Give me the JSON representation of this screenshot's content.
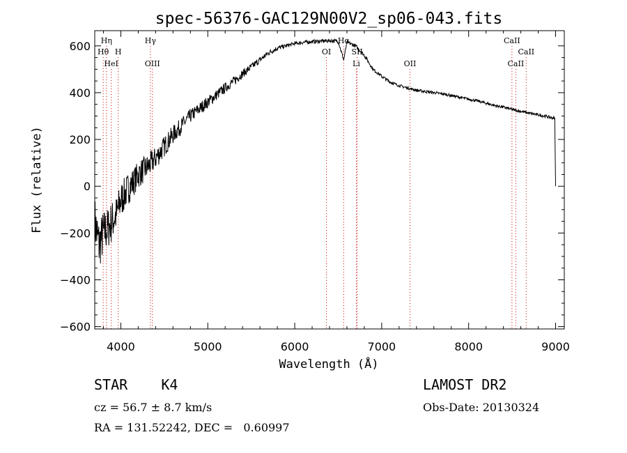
{
  "chart_data": {
    "type": "line",
    "title": "spec-56376-GAC129N00V2_sp06-043.fits",
    "xlabel": "Wavelength (Å)",
    "ylabel": "Flux (relative)",
    "xlim": [
      3700,
      9100
    ],
    "ylim": [
      -610,
      665
    ],
    "x_ticks": [
      4000,
      5000,
      6000,
      7000,
      8000,
      9000
    ],
    "y_ticks": [
      -600,
      -400,
      -200,
      0,
      200,
      400,
      600
    ],
    "grid": false,
    "series": [
      {
        "x": [
          3700,
          3750,
          3800,
          3850,
          3900,
          3950,
          4000,
          4050,
          4100,
          4150,
          4200,
          4300,
          4400,
          4500,
          4600,
          4700,
          4800,
          4900,
          5000,
          5100,
          5200,
          5300,
          5400,
          5500,
          5600,
          5700,
          5800,
          5900,
          6000,
          6100,
          6200,
          6300,
          6400,
          6500,
          6563,
          6600,
          6700,
          6800,
          6900,
          7000,
          7100,
          7200,
          7300,
          7400,
          7500,
          7600,
          7700,
          7800,
          7900,
          8000,
          8100,
          8200,
          8300,
          8400,
          8500,
          8600,
          8700,
          8800,
          8900,
          8990,
          9000
        ],
        "y": [
          -150,
          -250,
          -200,
          -180,
          -150,
          -120,
          -60,
          -30,
          0,
          20,
          50,
          80,
          120,
          170,
          220,
          260,
          300,
          330,
          360,
          390,
          420,
          450,
          480,
          510,
          540,
          570,
          590,
          600,
          610,
          615,
          618,
          620,
          622,
          620,
          540,
          615,
          600,
          560,
          500,
          470,
          445,
          430,
          420,
          410,
          405,
          400,
          395,
          388,
          380,
          372,
          365,
          355,
          345,
          338,
          328,
          320,
          312,
          305,
          298,
          290,
          0
        ],
        "noise": [
          110,
          110,
          100,
          90,
          90,
          80,
          80,
          70,
          70,
          60,
          60,
          55,
          50,
          45,
          40,
          35,
          30,
          28,
          26,
          24,
          22,
          20,
          18,
          16,
          14,
          12,
          10,
          8,
          8,
          8,
          8,
          8,
          8,
          8,
          8,
          8,
          8,
          8,
          7,
          7,
          7,
          6,
          6,
          6,
          6,
          6,
          6,
          6,
          6,
          6,
          6,
          6,
          6,
          6,
          6,
          6,
          6,
          6,
          6,
          6,
          0
        ]
      }
    ],
    "lines": [
      {
        "label": "Hη",
        "x": 3835,
        "row": 0
      },
      {
        "label": "Hθ",
        "x": 3797,
        "row": 1
      },
      {
        "label": "H",
        "x": 3970,
        "row": 1
      },
      {
        "label": "HeI",
        "x": 3889,
        "row": 2
      },
      {
        "label": "Hγ",
        "x": 4340,
        "row": 0
      },
      {
        "label": "OIII",
        "x": 4363,
        "row": 2
      },
      {
        "label": "OI",
        "x": 6364,
        "row": 1
      },
      {
        "label": "Hα",
        "x": 6563,
        "row": 0
      },
      {
        "label": "SII",
        "x": 6717,
        "row": 1
      },
      {
        "label": "Li",
        "x": 6708,
        "row": 2
      },
      {
        "label": "OII",
        "x": 7325,
        "row": 2
      },
      {
        "label": "CaII",
        "x": 8498,
        "row": 0
      },
      {
        "label": "CaII",
        "x": 8662,
        "row": 1
      },
      {
        "label": "CaII",
        "x": 8542,
        "row": 2
      }
    ]
  },
  "info": {
    "classline": "STAR    K4",
    "survey": "LAMOST DR2",
    "cz": "cz = 56.7 ± 8.7 km/s",
    "obsdate": "Obs-Date: 20130324",
    "radec": "RA = 131.52242, DEC =   0.60997"
  }
}
